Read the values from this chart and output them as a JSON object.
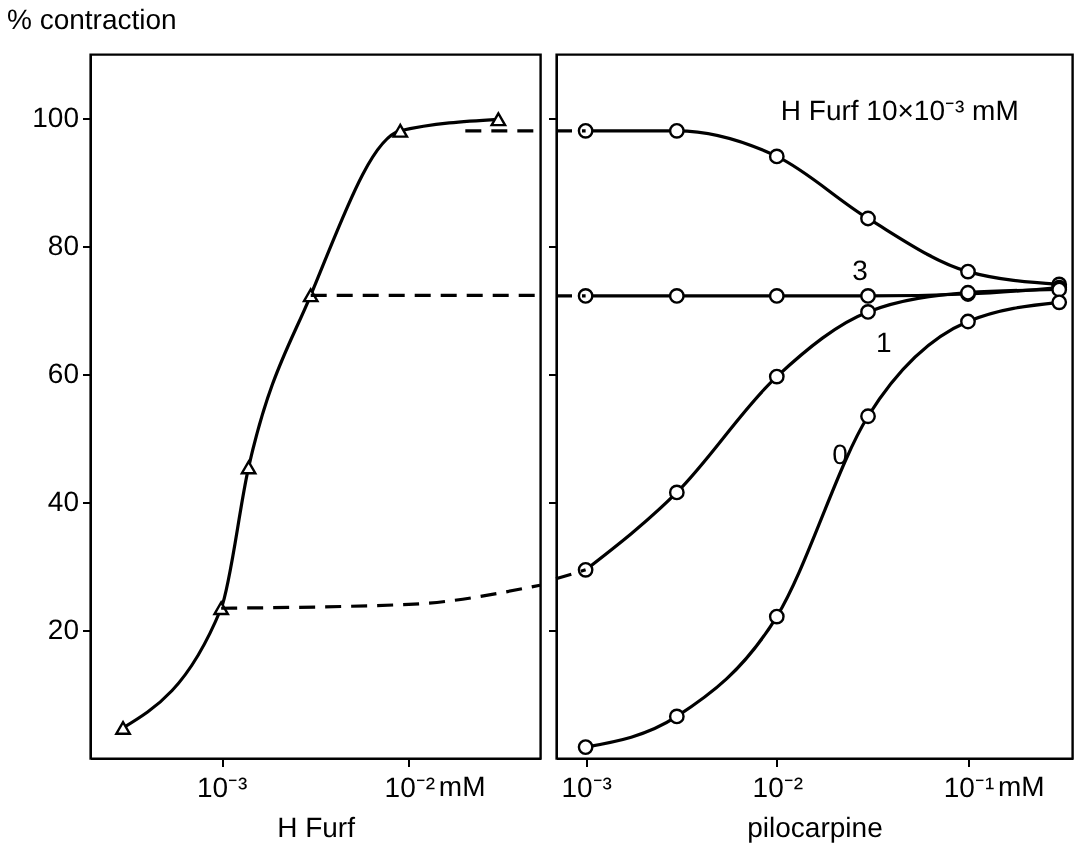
{
  "chart_data": [
    {
      "type": "line",
      "ylabel": "% contraction",
      "xlabel": "H Furf",
      "log": "x",
      "grid": false,
      "xlim": [
        0.0002,
        0.05
      ],
      "xticks": [
        {
          "value": 0.001,
          "label": "10⁻³"
        },
        {
          "value": 0.01,
          "label": "10⁻²"
        }
      ],
      "annotations": [
        "mM"
      ],
      "ylim": [
        0,
        110
      ],
      "yticks": [
        20,
        40,
        60,
        80,
        100
      ],
      "series": [
        {
          "color": "#000000",
          "marker": "triangle",
          "line_style": "solid",
          "x": [
            0.0003,
            0.001,
            0.0014,
            0.003,
            0.009,
            0.03
          ],
          "values": [
            4.7,
            23.4,
            45.4,
            72.3,
            98,
            99.8
          ]
        },
        {
          "color": "#000000",
          "marker": "none",
          "line_style": "dashed",
          "x": [
            0.001,
            0.01,
            0.05
          ],
          "values": [
            23.4,
            24,
            27
          ]
        },
        {
          "color": "#000000",
          "marker": "none",
          "line_style": "dashed",
          "x": [
            0.003,
            0.05
          ],
          "values": [
            72.3,
            72.3
          ]
        },
        {
          "color": "#000000",
          "marker": "none",
          "line_style": "dashed",
          "x": [
            0.02,
            0.05
          ],
          "values": [
            98,
            98
          ]
        }
      ]
    },
    {
      "type": "line",
      "xlabel": "pilocarpine",
      "log": "x",
      "grid": false,
      "tick_labels": "x",
      "xlim": [
        0.0007,
        0.35
      ],
      "xticks": [
        {
          "value": 0.001,
          "label": "10⁻³"
        },
        {
          "value": 0.01,
          "label": "10⁻²"
        },
        {
          "value": 0.1,
          "label": "10⁻¹"
        }
      ],
      "annotations": [
        "mM"
      ],
      "ylim": [
        0,
        110
      ],
      "yticks": [
        20,
        40,
        60,
        80,
        100
      ],
      "series": [
        {
          "name": "H Furf 10×10⁻³ mM",
          "color": "#000000",
          "marker": "circle",
          "line_style": "solid",
          "x": [
            0.001,
            0.003,
            0.01,
            0.03,
            0.1,
            0.3
          ],
          "values": [
            98,
            98,
            94,
            84.3,
            76,
            74
          ]
        },
        {
          "name": "3",
          "color": "#000000",
          "marker": "circle",
          "line_style": "solid",
          "x": [
            0.001,
            0.003,
            0.01,
            0.03,
            0.1,
            0.3
          ],
          "values": [
            72.2,
            72.2,
            72.2,
            72.2,
            72.5,
            73.5
          ]
        },
        {
          "name": "1",
          "color": "#000000",
          "marker": "circle",
          "line_style": "solid",
          "x": [
            0.001,
            0.003,
            0.01,
            0.03,
            0.1,
            0.3
          ],
          "values": [
            29.4,
            41.5,
            59.6,
            69.7,
            72.7,
            73.2
          ]
        },
        {
          "name": "0",
          "color": "#000000",
          "marker": "circle",
          "line_style": "solid",
          "x": [
            0.001,
            0.003,
            0.01,
            0.03,
            0.1,
            0.3
          ],
          "values": [
            1.7,
            6.5,
            22.1,
            53.4,
            68.2,
            71.2
          ]
        },
        {
          "color": "#000000",
          "marker": "none",
          "line_style": "dashed",
          "x": [
            0.0007,
            0.001
          ],
          "values": [
            28,
            29.4
          ]
        },
        {
          "color": "#000000",
          "marker": "none",
          "line_style": "dashed",
          "x": [
            0.0007,
            0.001
          ],
          "values": [
            72.2,
            72.2
          ]
        },
        {
          "color": "#000000",
          "marker": "none",
          "line_style": "dashed",
          "x": [
            0.0007,
            0.001
          ],
          "values": [
            98,
            98
          ]
        }
      ]
    }
  ]
}
